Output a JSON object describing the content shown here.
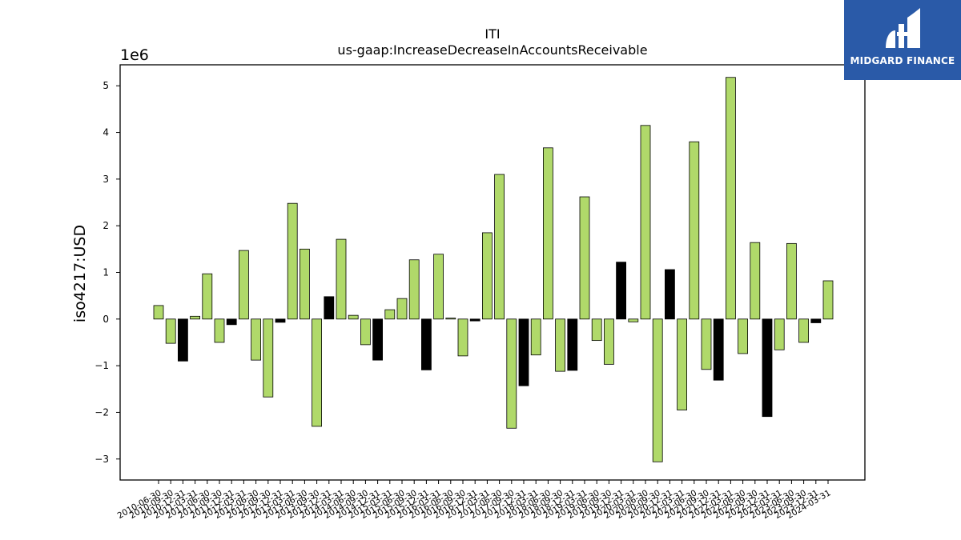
{
  "chart_data": {
    "type": "bar",
    "title": "ITI",
    "subtitle": "us-gaap:IncreaseDecreaseInAccountsReceivable",
    "ylabel": "iso4217:USD",
    "xlabel": "",
    "scale_label": "1e6",
    "ylim": [
      -3.45,
      5.45
    ],
    "yticks": [
      -3,
      -2,
      -1,
      0,
      1,
      2,
      3,
      4,
      5
    ],
    "ytick_labels": [
      "−3",
      "−2",
      "−1",
      "0",
      "1",
      "2",
      "3",
      "4",
      "5"
    ],
    "grid": false,
    "colors": {
      "positive_series": "#b0d96a",
      "highlight": "#000000",
      "edge": "#000000"
    },
    "categories": [
      "2010-06-30",
      "2010-09-30",
      "2010-12-31",
      "2011-03-31",
      "2011-06-30",
      "2011-09-30",
      "2011-12-31",
      "2012-03-31",
      "2012-06-30",
      "2012-09-30",
      "2012-12-31",
      "2013-03-31",
      "2013-06-30",
      "2013-09-30",
      "2013-12-31",
      "2014-03-31",
      "2014-06-30",
      "2014-09-30",
      "2014-12-31",
      "2015-03-31",
      "2015-06-30",
      "2015-09-30",
      "2015-12-31",
      "2016-03-31",
      "2016-06-30",
      "2016-09-30",
      "2016-12-31",
      "2017-03-31",
      "2017-06-30",
      "2017-09-30",
      "2017-12-31",
      "2018-03-31",
      "2018-06-30",
      "2018-09-30",
      "2018-12-31",
      "2019-03-31",
      "2019-06-30",
      "2019-09-30",
      "2019-12-31",
      "2020-03-31",
      "2020-06-30",
      "2020-09-30",
      "2020-12-31",
      "2021-03-31",
      "2021-06-30",
      "2021-09-30",
      "2021-12-31",
      "2022-03-31",
      "2022-06-30",
      "2022-09-30",
      "2022-12-31",
      "2023-03-31",
      "2023-06-30",
      "2023-09-30",
      "2023-12-31",
      "2024-03-31"
    ],
    "values": [
      0.29,
      -0.52,
      -0.9,
      0.06,
      0.97,
      -0.5,
      -0.12,
      1.47,
      -0.88,
      -1.67,
      -0.07,
      2.48,
      1.5,
      -2.3,
      0.48,
      1.71,
      0.08,
      -0.55,
      -0.88,
      0.2,
      0.44,
      1.27,
      -1.09,
      1.39,
      0.02,
      -0.79,
      -0.04,
      1.85,
      3.1,
      -2.34,
      -1.43,
      -0.77,
      3.67,
      -1.12,
      -1.1,
      2.62,
      -0.46,
      -0.97,
      1.22,
      -0.06,
      4.15,
      -3.06,
      1.06,
      -1.95,
      3.8,
      -1.08,
      -1.31,
      5.18,
      -0.74,
      1.64,
      -2.09,
      -0.66,
      1.62,
      -0.5,
      -0.08,
      0.82
    ],
    "bar_colors": [
      "green",
      "green",
      "black",
      "green",
      "green",
      "green",
      "black",
      "green",
      "green",
      "green",
      "black",
      "green",
      "green",
      "green",
      "black",
      "green",
      "green",
      "green",
      "black",
      "green",
      "green",
      "green",
      "black",
      "green",
      "green",
      "green",
      "black",
      "green",
      "green",
      "green",
      "black",
      "green",
      "green",
      "green",
      "black",
      "green",
      "green",
      "green",
      "black",
      "green",
      "green",
      "green",
      "black",
      "green",
      "green",
      "green",
      "black",
      "green",
      "green",
      "green",
      "black",
      "green",
      "green",
      "green",
      "black",
      "green"
    ]
  },
  "logo": {
    "text": "MIDGARD FINANCE",
    "icon": "midgard-logo-icon",
    "background": "#2a5aa8"
  }
}
